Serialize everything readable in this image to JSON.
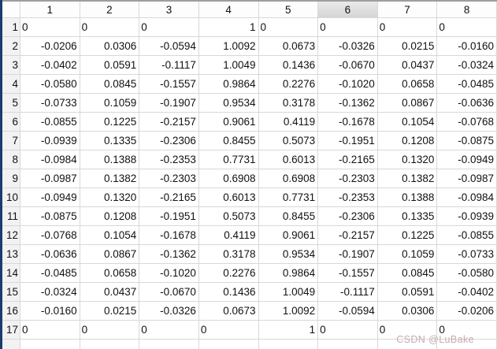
{
  "window": {
    "left_accent_color": "#1a3c6e",
    "top_border_color": "#9e9e9e",
    "grid_line_color": "#d8d8d8",
    "selected_header_color": "#dcdcdc"
  },
  "table": {
    "column_headers": [
      "1",
      "2",
      "3",
      "4",
      "5",
      "6",
      "7",
      "8"
    ],
    "selected_column": "6",
    "row_headers": [
      "1",
      "2",
      "3",
      "4",
      "5",
      "6",
      "7",
      "8",
      "9",
      "10",
      "11",
      "12",
      "13",
      "14",
      "15",
      "16",
      "17"
    ],
    "rows": [
      [
        "0",
        "0",
        "0",
        "1",
        "0",
        "0",
        "0",
        "0"
      ],
      [
        "-0.0206",
        "0.0306",
        "-0.0594",
        "1.0092",
        "0.0673",
        "-0.0326",
        "0.0215",
        "-0.0160"
      ],
      [
        "-0.0402",
        "0.0591",
        "-0.1117",
        "1.0049",
        "0.1436",
        "-0.0670",
        "0.0437",
        "-0.0324"
      ],
      [
        "-0.0580",
        "0.0845",
        "-0.1557",
        "0.9864",
        "0.2276",
        "-0.1020",
        "0.0658",
        "-0.0485"
      ],
      [
        "-0.0733",
        "0.1059",
        "-0.1907",
        "0.9534",
        "0.3178",
        "-0.1362",
        "0.0867",
        "-0.0636"
      ],
      [
        "-0.0855",
        "0.1225",
        "-0.2157",
        "0.9061",
        "0.4119",
        "-0.1678",
        "0.1054",
        "-0.0768"
      ],
      [
        "-0.0939",
        "0.1335",
        "-0.2306",
        "0.8455",
        "0.5073",
        "-0.1951",
        "0.1208",
        "-0.0875"
      ],
      [
        "-0.0984",
        "0.1388",
        "-0.2353",
        "0.7731",
        "0.6013",
        "-0.2165",
        "0.1320",
        "-0.0949"
      ],
      [
        "-0.0987",
        "0.1382",
        "-0.2303",
        "0.6908",
        "0.6908",
        "-0.2303",
        "0.1382",
        "-0.0987"
      ],
      [
        "-0.0949",
        "0.1320",
        "-0.2165",
        "0.6013",
        "0.7731",
        "-0.2353",
        "0.1388",
        "-0.0984"
      ],
      [
        "-0.0875",
        "0.1208",
        "-0.1951",
        "0.5073",
        "0.8455",
        "-0.2306",
        "0.1335",
        "-0.0939"
      ],
      [
        "-0.0768",
        "0.1054",
        "-0.1678",
        "0.4119",
        "0.9061",
        "-0.2157",
        "0.1225",
        "-0.0855"
      ],
      [
        "-0.0636",
        "0.0867",
        "-0.1362",
        "0.3178",
        "0.9534",
        "-0.1907",
        "0.1059",
        "-0.0733"
      ],
      [
        "-0.0485",
        "0.0658",
        "-0.1020",
        "0.2276",
        "0.9864",
        "-0.1557",
        "0.0845",
        "-0.0580"
      ],
      [
        "-0.0324",
        "0.0437",
        "-0.0670",
        "0.1436",
        "1.0049",
        "-0.1117",
        "0.0591",
        "-0.0402"
      ],
      [
        "-0.0160",
        "0.0215",
        "-0.0326",
        "0.0673",
        "1.0092",
        "-0.0594",
        "0.0306",
        "-0.0206"
      ],
      [
        "0",
        "0",
        "0",
        "0",
        "1",
        "0",
        "0",
        "0"
      ]
    ]
  },
  "watermark": {
    "text": "CSDN @LuBake"
  }
}
